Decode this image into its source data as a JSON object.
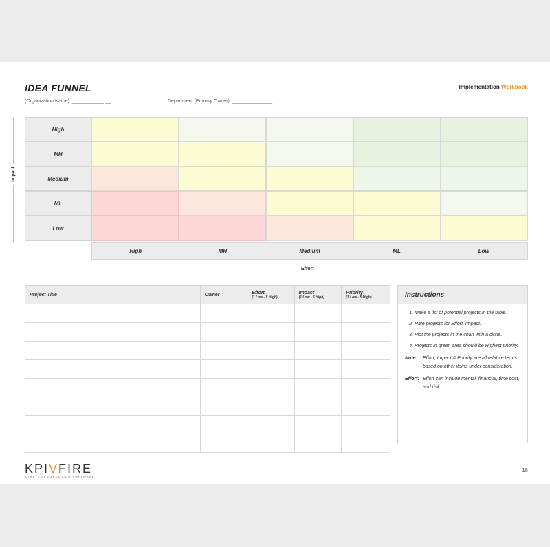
{
  "header": {
    "title": "IDEA FUNNEL",
    "workbook_prefix": "Implementation",
    "workbook_accent": "Workbook",
    "org_field": "(Organization Name): ____________ __",
    "dept_field": "Department (Primary Owner): _______________"
  },
  "matrix": {
    "impact_label": "Impact",
    "effort_label": "Effort",
    "rows": [
      {
        "label": "High",
        "cells": [
          "c-y",
          "c-lg",
          "c-lg",
          "c-g",
          "c-g"
        ]
      },
      {
        "label": "MH",
        "cells": [
          "c-y",
          "c-y",
          "c-lg",
          "c-g",
          "c-g"
        ]
      },
      {
        "label": "Medium",
        "cells": [
          "c-pe",
          "c-y",
          "c-y",
          "c-mg",
          "c-mg"
        ]
      },
      {
        "label": "ML",
        "cells": [
          "c-r",
          "c-pe",
          "c-y",
          "c-y",
          "c-lg"
        ]
      },
      {
        "label": "Low",
        "cells": [
          "c-r",
          "c-r",
          "c-pe",
          "c-y",
          "c-y"
        ]
      }
    ],
    "x_labels": [
      "High",
      "MH",
      "Medium",
      "ML",
      "Low"
    ]
  },
  "table": {
    "headers": [
      {
        "label": "Project Title",
        "sub": ""
      },
      {
        "label": "Owner",
        "sub": ""
      },
      {
        "label": "Effort",
        "sub": "(1 Low - 5 High)"
      },
      {
        "label": "Impact",
        "sub": "(1 Low - 5 High)"
      },
      {
        "label": "Priority",
        "sub": "(1 Low - 5 High)"
      }
    ],
    "row_count": 8
  },
  "instructions": {
    "title": "Instructions",
    "items": [
      "Make a list of potential projects in the table.",
      "Rate projects for Effort, Impact.",
      "Plot the projects in the chart with a circle.",
      "Projects in green area should be Highest priority."
    ],
    "note_key": "Note:",
    "note_text": "Effort, Impact & Priority are all relative terms based on other items under consideration.",
    "effort_key": "Effort:",
    "effort_text": "Effort can include mental, financial, time cost, and risk"
  },
  "footer": {
    "logo_a": "KPI",
    "logo_v": "V",
    "logo_b": "FIRE",
    "tagline": "STRATEGY EXECUTION SOFTWARE",
    "page_number": "18"
  }
}
